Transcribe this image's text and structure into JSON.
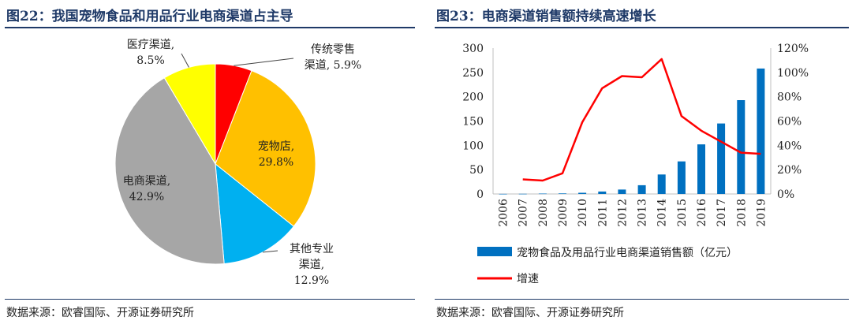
{
  "left": {
    "title": "图22：我国宠物食品和用品行业电商渠道占主导",
    "source": "数据来源：欧睿国际、开源证券研究所",
    "chart_data": {
      "type": "pie",
      "slices": [
        {
          "name": "传统零售渠道",
          "label_line1": "传统零售",
          "label_line2": "渠道, 5.9%",
          "value": 5.9,
          "color": "#ff0000"
        },
        {
          "name": "宠物店",
          "label_line1": "宠物店,",
          "label_line2": "29.8%",
          "value": 29.8,
          "color": "#ffc000"
        },
        {
          "name": "其他专业渠道",
          "label_line1": "其他专业",
          "label_line2": "渠道,",
          "label_line3": "12.9%",
          "value": 12.9,
          "color": "#00b0f0"
        },
        {
          "name": "电商渠道",
          "label_line1": "电商渠道,",
          "label_line2": "42.9%",
          "value": 42.9,
          "color": "#a6a6a6"
        },
        {
          "name": "医疗渠道",
          "label_line1": "医疗渠道,",
          "label_line2": "8.5%",
          "value": 8.5,
          "color": "#ffff00"
        }
      ]
    }
  },
  "right": {
    "title": "图23：电商渠道销售额持续高速增长",
    "source": "数据来源：欧睿国际、开源证券研究所",
    "chart_data": {
      "type": "bar",
      "categories": [
        "2006",
        "2007",
        "2008",
        "2009",
        "2010",
        "2011",
        "2012",
        "2013",
        "2014",
        "2015",
        "2016",
        "2017",
        "2018",
        "2019"
      ],
      "series": [
        {
          "name": "宠物食品及用品行业电商渠道销售额（亿元）",
          "kind": "bar",
          "axis": "left",
          "color": "#0070c0",
          "values": [
            0.2,
            0.4,
            0.8,
            1.2,
            2.5,
            5,
            9,
            18,
            40,
            67,
            102,
            145,
            193,
            258
          ]
        },
        {
          "name": "增速",
          "kind": "line",
          "axis": "right",
          "color": "#ff0000",
          "values": [
            null,
            0.12,
            0.11,
            0.17,
            0.59,
            0.87,
            0.97,
            0.96,
            1.11,
            0.64,
            0.52,
            0.43,
            0.34,
            0.33
          ]
        }
      ],
      "y_left": {
        "ticks": [
          "0",
          "50",
          "100",
          "150",
          "200",
          "250",
          "300"
        ],
        "ylim": [
          0,
          300
        ]
      },
      "y_right": {
        "ticks": [
          "0%",
          "20%",
          "40%",
          "60%",
          "80%",
          "100%",
          "120%"
        ],
        "ylim": [
          0,
          1.2
        ]
      }
    }
  }
}
